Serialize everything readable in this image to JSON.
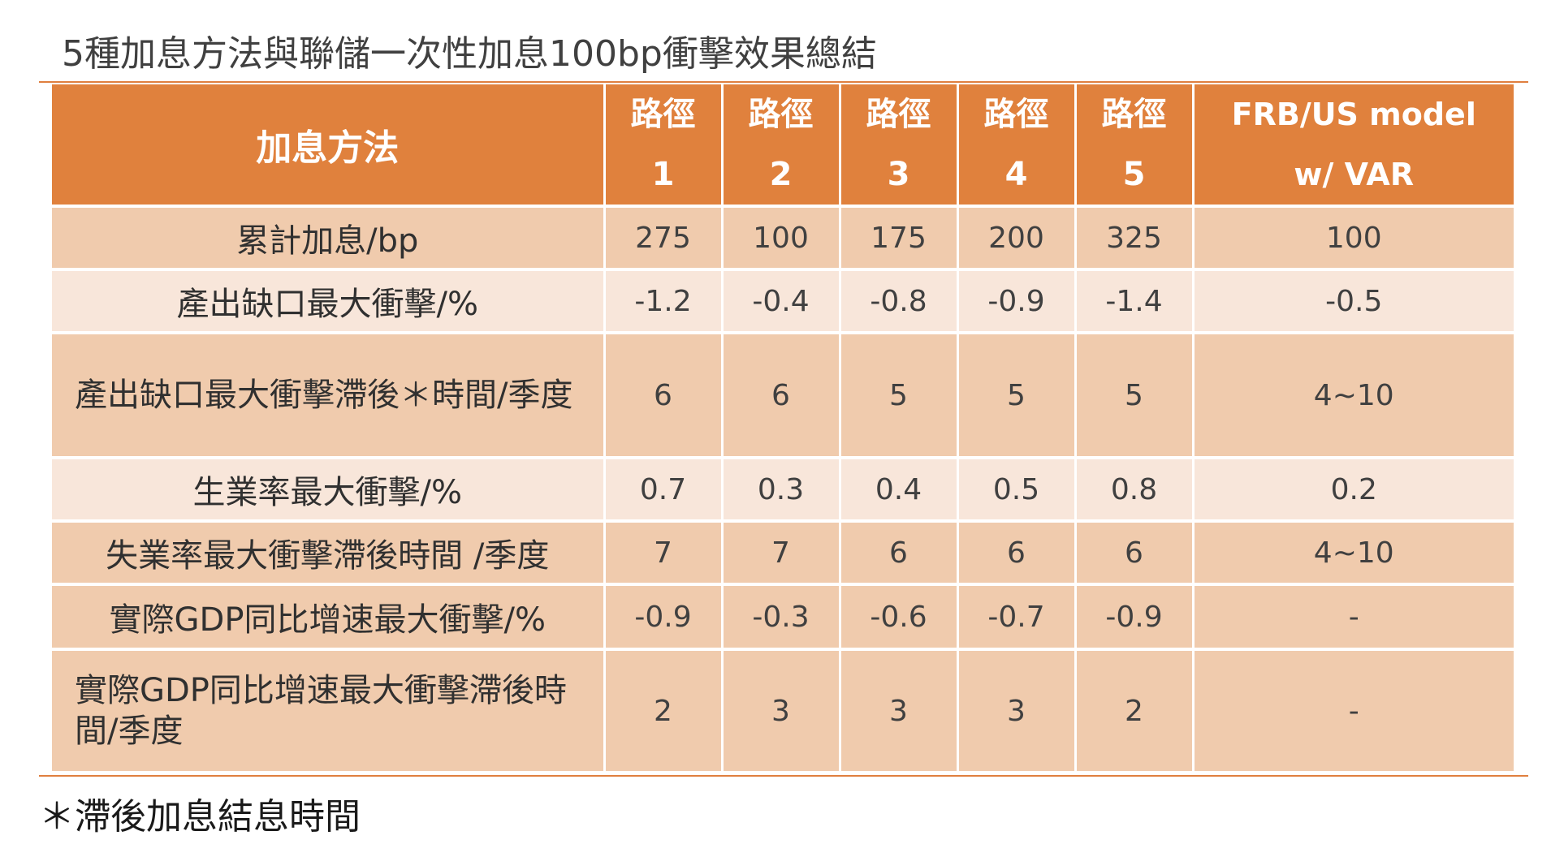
{
  "title": "5種加息方法與聯儲一次性加息100bp衝擊效果總結",
  "table": {
    "headers": {
      "method": "加息方法",
      "paths": [
        {
          "line1": "路徑",
          "line2": "1"
        },
        {
          "line1": "路徑",
          "line2": "2"
        },
        {
          "line1": "路徑",
          "line2": "3"
        },
        {
          "line1": "路徑",
          "line2": "4"
        },
        {
          "line1": "路徑",
          "line2": "5"
        }
      ],
      "frb": {
        "line1": "FRB/US model",
        "line2": "w/ VAR"
      }
    },
    "rows": [
      {
        "label": "累計加息/bp",
        "values": [
          "275",
          "100",
          "175",
          "200",
          "325"
        ],
        "frb": "100"
      },
      {
        "label": "產出缺口最大衝擊/%",
        "values": [
          "-1.2",
          "-0.4",
          "-0.8",
          "-0.9",
          "-1.4"
        ],
        "frb": "-0.5"
      },
      {
        "label": "產出缺口最大衝擊滯後＊時間/季度",
        "values": [
          "6",
          "6",
          "5",
          "5",
          "5"
        ],
        "frb": "4~10"
      },
      {
        "label": "生業率最大衝擊/%",
        "values": [
          "0.7",
          "0.3",
          "0.4",
          "0.5",
          "0.8"
        ],
        "frb": "0.2"
      },
      {
        "label": "失業率最大衝擊滯後時間 /季度",
        "values": [
          "7",
          "7",
          "6",
          "6",
          "6"
        ],
        "frb": "4~10"
      },
      {
        "label": "實際GDP同比增速最大衝擊/%",
        "values": [
          "-0.9",
          "-0.3",
          "-0.6",
          "-0.7",
          "-0.9"
        ],
        "frb": "-"
      },
      {
        "label": "實際GDP同比增速最大衝擊滯後時間/季度",
        "values": [
          "2",
          "3",
          "3",
          "3",
          "2"
        ],
        "frb": "-"
      }
    ]
  },
  "footnote": "＊滯後加息結息時間",
  "colors": {
    "header_bg": "#e0813d",
    "row_dark": "#f0cbad",
    "row_light": "#f8e6da",
    "rule": "#e07f3f"
  }
}
